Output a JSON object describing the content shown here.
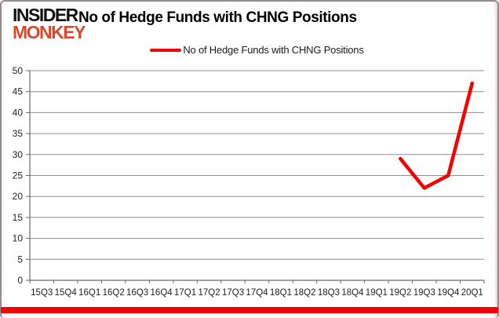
{
  "header": {
    "logo_line1": "INSIDER",
    "logo_line2": "MONKEY",
    "title": "No of Hedge Funds with CHNG Positions"
  },
  "legend": {
    "label": "No of Hedge Funds with CHNG Positions"
  },
  "chart_data": {
    "type": "line",
    "title": "No of Hedge Funds with CHNG Positions",
    "categories": [
      "15Q3",
      "15Q4",
      "16Q1",
      "16Q2",
      "16Q3",
      "16Q4",
      "17Q1",
      "17Q2",
      "17Q3",
      "17Q4",
      "18Q1",
      "18Q2",
      "18Q3",
      "18Q4",
      "19Q1",
      "19Q2",
      "19Q3",
      "19Q4",
      "20Q1"
    ],
    "series": [
      {
        "name": "No of Hedge Funds with CHNG Positions",
        "values": [
          null,
          null,
          null,
          null,
          null,
          null,
          null,
          null,
          null,
          null,
          null,
          null,
          null,
          null,
          null,
          29,
          22,
          25,
          47
        ]
      }
    ],
    "xlabel": "",
    "ylabel": "",
    "ylim": [
      0,
      50
    ],
    "ytick_step": 5,
    "grid": true,
    "legend_position": "top-center"
  },
  "colors": {
    "series_red": "#f50000",
    "logo_red": "#d8492b",
    "gridline": "#8e8e8e",
    "axis": "#6b6b6b",
    "tick_label": "#1f1f1f",
    "bottom_bar": "#f30202"
  }
}
